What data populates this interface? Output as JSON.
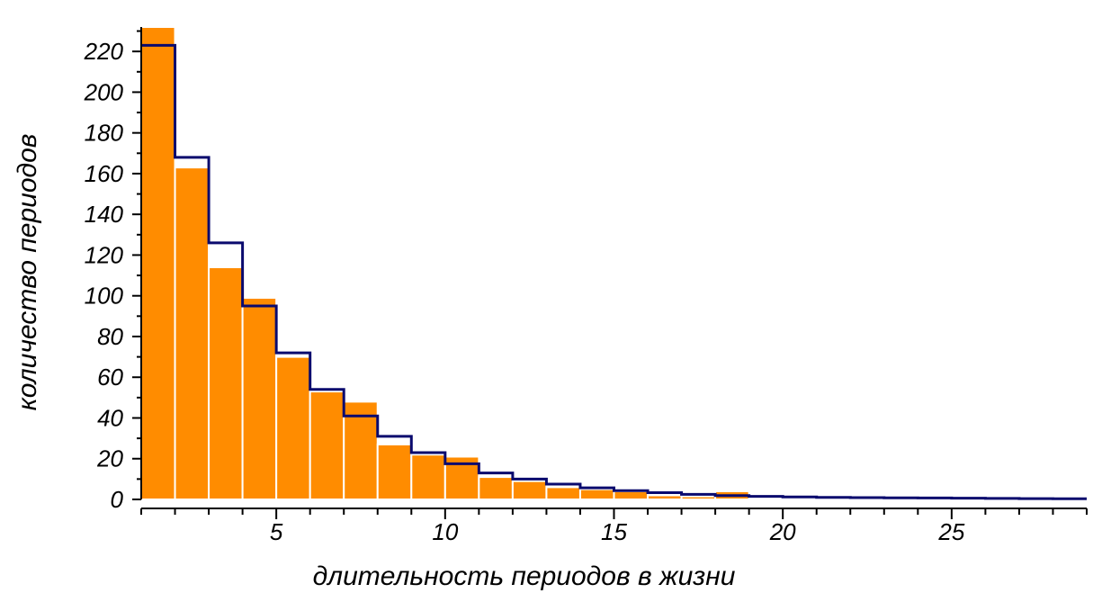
{
  "chart_data": {
    "type": "bar",
    "xlabel": "длительность периодов в жизни",
    "ylabel": "количество периодов",
    "xlim": [
      1,
      29
    ],
    "ylim": [
      0,
      232
    ],
    "x_ticks": [
      5,
      10,
      15,
      20,
      25
    ],
    "x_tick_labels": [
      "5",
      "10",
      "15",
      "20",
      "25"
    ],
    "y_ticks": [
      0,
      20,
      40,
      60,
      80,
      100,
      120,
      140,
      160,
      180,
      200,
      220
    ],
    "y_tick_labels": [
      "0",
      "20",
      "40",
      "60",
      "80",
      "100",
      "120",
      "140",
      "160",
      "180",
      "200",
      "220"
    ],
    "grid": false,
    "colors": {
      "bars": "#ff8c00",
      "bar_edge": "#ffffff",
      "fit_line": "#0a0a6e",
      "axis": "#000000"
    },
    "series": [
      {
        "kind": "histogram",
        "bin_width": 1,
        "bins": [
          {
            "x0": 1,
            "x1": 2,
            "count": 232
          },
          {
            "x0": 2,
            "x1": 3,
            "count": 163
          },
          {
            "x0": 3,
            "x1": 4,
            "count": 114
          },
          {
            "x0": 4,
            "x1": 5,
            "count": 99
          },
          {
            "x0": 5,
            "x1": 6,
            "count": 70
          },
          {
            "x0": 6,
            "x1": 7,
            "count": 53
          },
          {
            "x0": 7,
            "x1": 8,
            "count": 48
          },
          {
            "x0": 8,
            "x1": 9,
            "count": 27
          },
          {
            "x0": 9,
            "x1": 10,
            "count": 22
          },
          {
            "x0": 10,
            "x1": 11,
            "count": 21
          },
          {
            "x0": 11,
            "x1": 12,
            "count": 11
          },
          {
            "x0": 12,
            "x1": 13,
            "count": 9
          },
          {
            "x0": 13,
            "x1": 14,
            "count": 6
          },
          {
            "x0": 14,
            "x1": 15,
            "count": 5
          },
          {
            "x0": 15,
            "x1": 16,
            "count": 4
          },
          {
            "x0": 16,
            "x1": 17,
            "count": 2
          },
          {
            "x0": 17,
            "x1": 18,
            "count": 1.5
          },
          {
            "x0": 18,
            "x1": 19,
            "count": 4
          }
        ]
      },
      {
        "kind": "step-line",
        "points": [
          {
            "x0": 1,
            "x1": 2,
            "y": 223
          },
          {
            "x0": 2,
            "x1": 3,
            "y": 168
          },
          {
            "x0": 3,
            "x1": 4,
            "y": 126
          },
          {
            "x0": 4,
            "x1": 5,
            "y": 95
          },
          {
            "x0": 5,
            "x1": 6,
            "y": 72
          },
          {
            "x0": 6,
            "x1": 7,
            "y": 54
          },
          {
            "x0": 7,
            "x1": 8,
            "y": 41
          },
          {
            "x0": 8,
            "x1": 9,
            "y": 31
          },
          {
            "x0": 9,
            "x1": 10,
            "y": 23
          },
          {
            "x0": 10,
            "x1": 11,
            "y": 17.5
          },
          {
            "x0": 11,
            "x1": 12,
            "y": 13
          },
          {
            "x0": 12,
            "x1": 13,
            "y": 10
          },
          {
            "x0": 13,
            "x1": 14,
            "y": 7.5
          },
          {
            "x0": 14,
            "x1": 15,
            "y": 5.7
          },
          {
            "x0": 15,
            "x1": 16,
            "y": 4.3
          },
          {
            "x0": 16,
            "x1": 17,
            "y": 3.3
          },
          {
            "x0": 17,
            "x1": 18,
            "y": 2.5
          },
          {
            "x0": 18,
            "x1": 19,
            "y": 1.9
          },
          {
            "x0": 19,
            "x1": 20,
            "y": 1.5
          },
          {
            "x0": 20,
            "x1": 21,
            "y": 1.2
          },
          {
            "x0": 21,
            "x1": 22,
            "y": 1.0
          },
          {
            "x0": 22,
            "x1": 23,
            "y": 0.9
          },
          {
            "x0": 23,
            "x1": 24,
            "y": 0.8
          },
          {
            "x0": 24,
            "x1": 25,
            "y": 0.7
          },
          {
            "x0": 25,
            "x1": 26,
            "y": 0.6
          },
          {
            "x0": 26,
            "x1": 27,
            "y": 0.5
          },
          {
            "x0": 27,
            "x1": 28,
            "y": 0.4
          },
          {
            "x0": 28,
            "x1": 29,
            "y": 0.35
          }
        ]
      }
    ]
  }
}
